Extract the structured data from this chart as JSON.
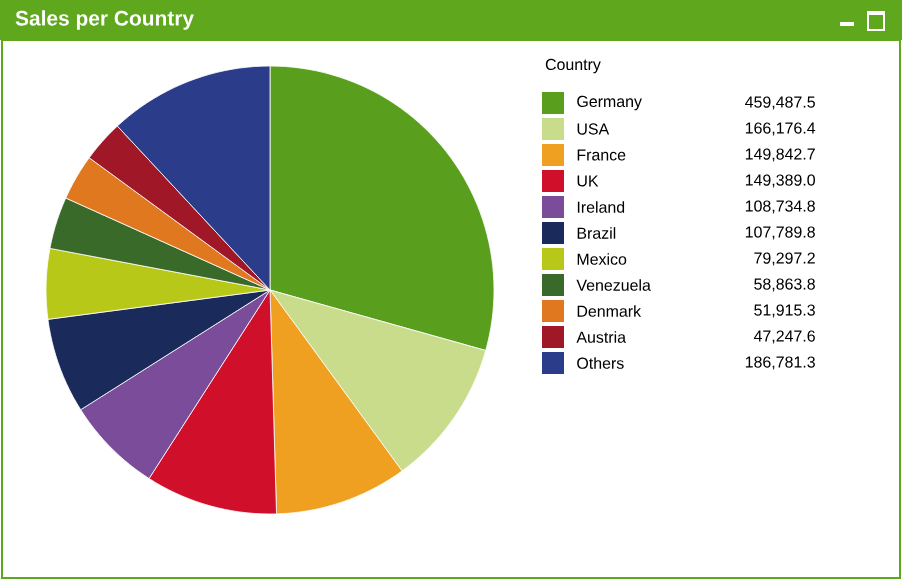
{
  "chart_data": {
    "type": "pie",
    "title": "Sales per Country",
    "legend_title": "Country",
    "legend": "right",
    "categories": [
      "Germany",
      "USA",
      "France",
      "UK",
      "Ireland",
      "Brazil",
      "Mexico",
      "Venezuela",
      "Denmark",
      "Austria",
      "Others"
    ],
    "values": [
      459487.5,
      166176.4,
      149842.7,
      149389.0,
      108734.8,
      107789.8,
      79297.2,
      58863.8,
      51915.3,
      47247.6,
      186781.3
    ],
    "value_labels": [
      "459,487.5",
      "166,176.4",
      "149,842.7",
      "149,389.0",
      "108,734.8",
      "107,789.8",
      "79,297.2",
      "58,863.8",
      "51,915.3",
      "47,247.6",
      "186,781.3"
    ],
    "colors": [
      "#5a9e1e",
      "#c8dc8c",
      "#f0a020",
      "#d0102a",
      "#7a4c9a",
      "#1a2a5a",
      "#b8c818",
      "#3a6a2a",
      "#e07820",
      "#a01828",
      "#2a3c8a"
    ]
  }
}
